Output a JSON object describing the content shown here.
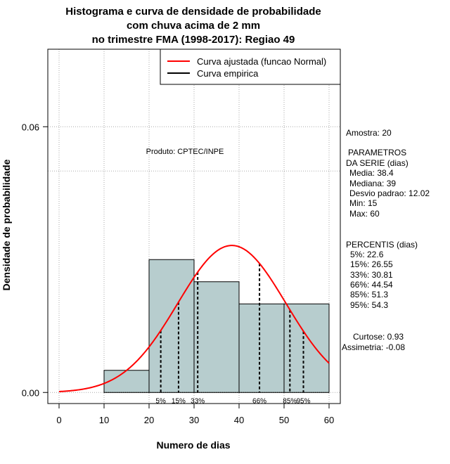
{
  "chart_data": {
    "type": "bar",
    "title": [
      "Histograma e curva de densidade de probabilidade",
      "com chuva acima de 2 mm",
      "no trimestre FMA (1998-2017): Regiao 49"
    ],
    "xlabel": "Numero de dias",
    "ylabel": "Densidade de probabilidade",
    "xlim": [
      -2.5,
      62.5
    ],
    "ylim": [
      -0.0025,
      0.0775
    ],
    "x_ticks": [
      0,
      10,
      20,
      30,
      40,
      50,
      60
    ],
    "x_tick_labels": [
      "0",
      "10",
      "20",
      "30",
      "40",
      "50",
      "60"
    ],
    "y_ticks": [
      0.0,
      0.06
    ],
    "y_tick_labels": [
      "0.00",
      "0.06"
    ],
    "grid": true,
    "bins": [
      {
        "from": 10,
        "to": 20,
        "density": 0.005
      },
      {
        "from": 20,
        "to": 30,
        "density": 0.03
      },
      {
        "from": 30,
        "to": 40,
        "density": 0.025
      },
      {
        "from": 40,
        "to": 50,
        "density": 0.02
      },
      {
        "from": 50,
        "to": 60,
        "density": 0.02
      }
    ],
    "series": [
      {
        "name": "Curva ajustada (funcao Normal)",
        "color": "#ff0000",
        "kind": "normal-curve",
        "mean": 38.4,
        "sd": 12.02
      },
      {
        "name": "Curva empirica",
        "color": "#000000",
        "kind": "empirical"
      }
    ],
    "percentile_lines": [
      {
        "label": "5%",
        "x": 22.6
      },
      {
        "label": "15%",
        "x": 26.55
      },
      {
        "label": "33%",
        "x": 30.81
      },
      {
        "label": "66%",
        "x": 44.54
      },
      {
        "label": "85%",
        "x": 51.3
      },
      {
        "label": "95%",
        "x": 54.3
      }
    ],
    "legend_position": "top-right",
    "annotation_product": "Produto: CPTEC/INPE"
  },
  "side_panel": {
    "sample": "Amostra: 20",
    "params_heading": [
      "PARAMETROS",
      "DA SERIE (dias)"
    ],
    "params": [
      "Media: 38.4",
      "Mediana: 39",
      "Desvio padrao: 12.02",
      "Min: 15",
      "Max: 60"
    ],
    "percentiles_heading": "PERCENTIS (dias)",
    "percentiles": [
      "5%: 22.6",
      "15%: 26.55",
      "33%: 30.81",
      "66%: 44.54",
      "85%: 51.3",
      "95%: 54.3"
    ],
    "kurtosis": "Curtose: 0.93",
    "skewness": "Assimetria: -0.08"
  },
  "colors": {
    "bar_fill": "#b7cdce",
    "bar_stroke": "#000000",
    "curve": "#ff0000",
    "grid": "#aaaaaa"
  }
}
